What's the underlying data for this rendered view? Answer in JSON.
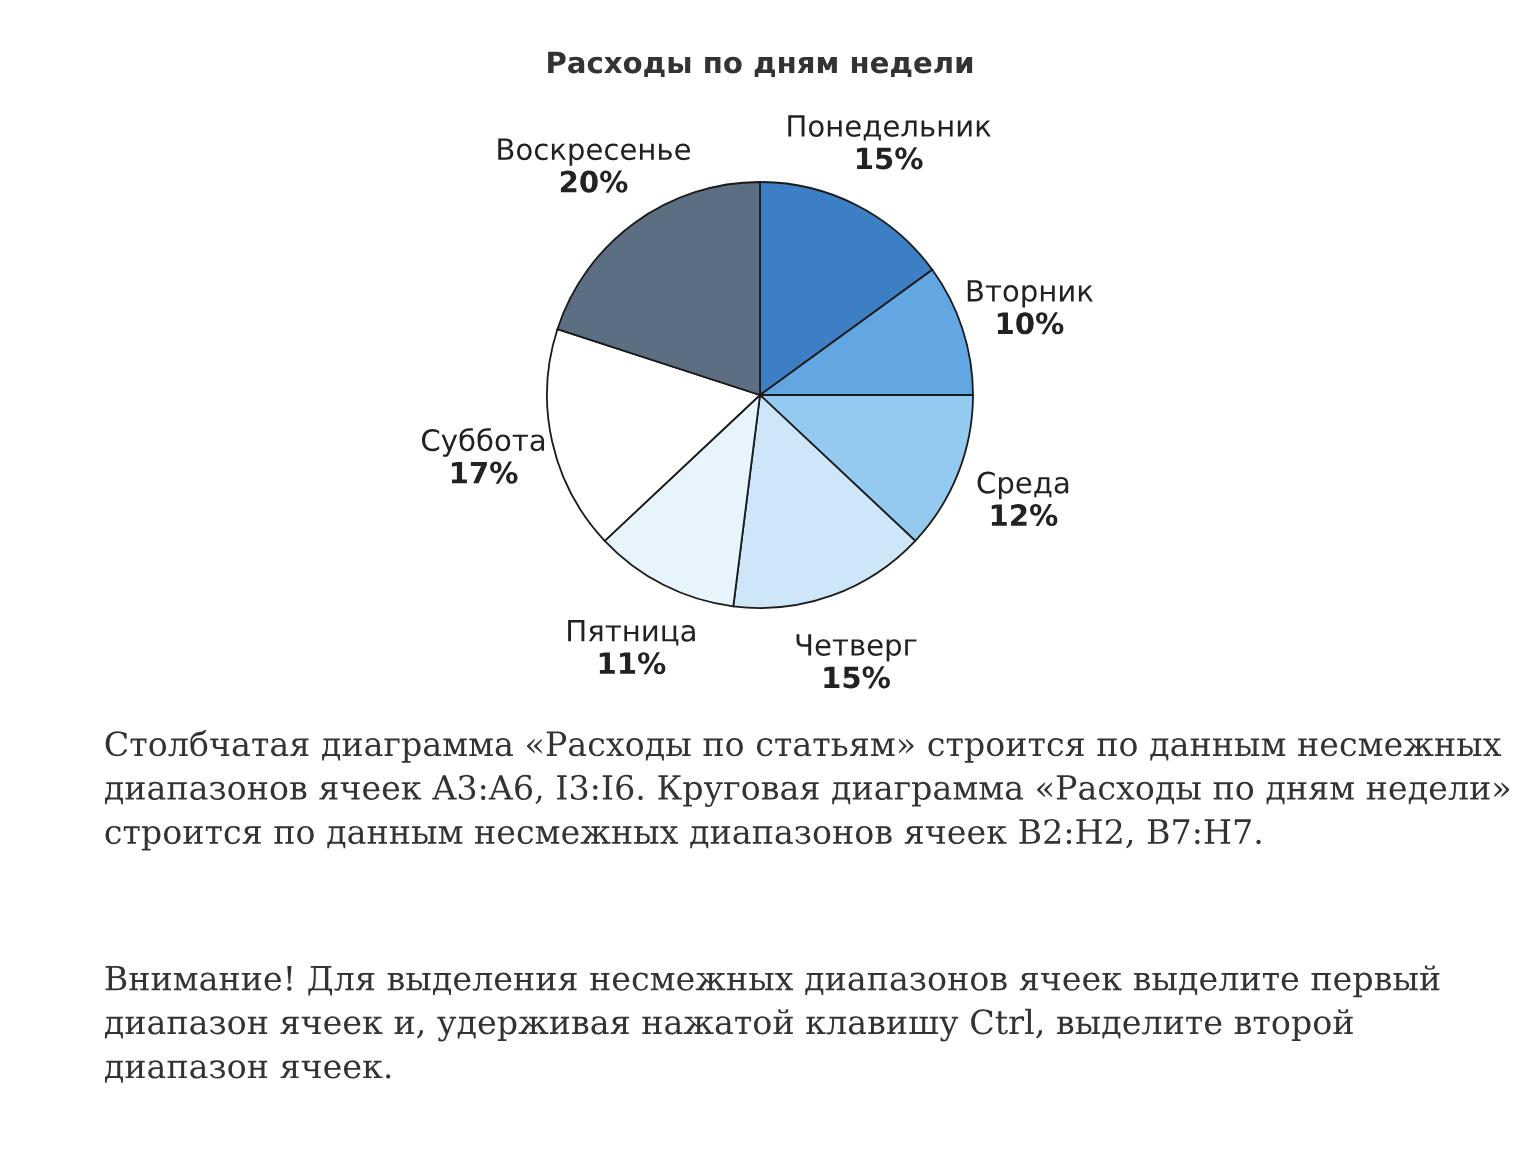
{
  "chart_data": {
    "type": "pie",
    "title": "Расходы по дням недели",
    "categories": [
      "Понедельник",
      "Вторник",
      "Среда",
      "Четверг",
      "Пятница",
      "Суббота",
      "Воскресенье"
    ],
    "values": [
      15,
      10,
      12,
      15,
      11,
      17,
      20
    ],
    "value_labels": [
      "15%",
      "10%",
      "12%",
      "15%",
      "11%",
      "17%",
      "20%"
    ],
    "colors": [
      "#3d7fc4",
      "#62a6e2",
      "#94c9f0",
      "#cde6f8",
      "#e8f4fc",
      "#ffffff",
      "#5c6f82"
    ],
    "annotations": [
      "Столбчатая диаграмма «Расходы по статьям» строится по данным несмежных диапазонов ячеек A3:A6, I3:I6. Круговая диаграмма «Расходы по дням недели» строится по данным несмежных диапазонов ячеек B2:H2, B7:H7.",
      "Внимание! Для выделения несмежных диапазонов ячеек выделите первый диапазон ячеек и, удерживая нажатой клавишу Ctrl, выделите второй диапазон ячеек."
    ]
  }
}
